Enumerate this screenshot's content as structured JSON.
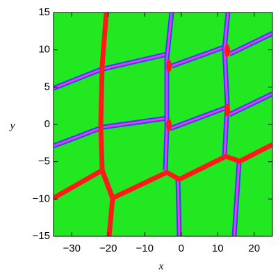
{
  "chart_data": {
    "type": "density",
    "xlabel": "x",
    "ylabel": "y",
    "xlim": [
      -35,
      25
    ],
    "ylim": [
      -15,
      15
    ],
    "xticks": [
      {
        "value": -30,
        "label": "−30"
      },
      {
        "value": -20,
        "label": "−20"
      },
      {
        "value": -10,
        "label": "−10"
      },
      0,
      10,
      20
    ],
    "yticks": [
      {
        "value": -15,
        "label": "−15"
      },
      {
        "value": -10,
        "label": "−10"
      },
      {
        "value": -5,
        "label": "−5"
      },
      0,
      5,
      10,
      15
    ]
  }
}
